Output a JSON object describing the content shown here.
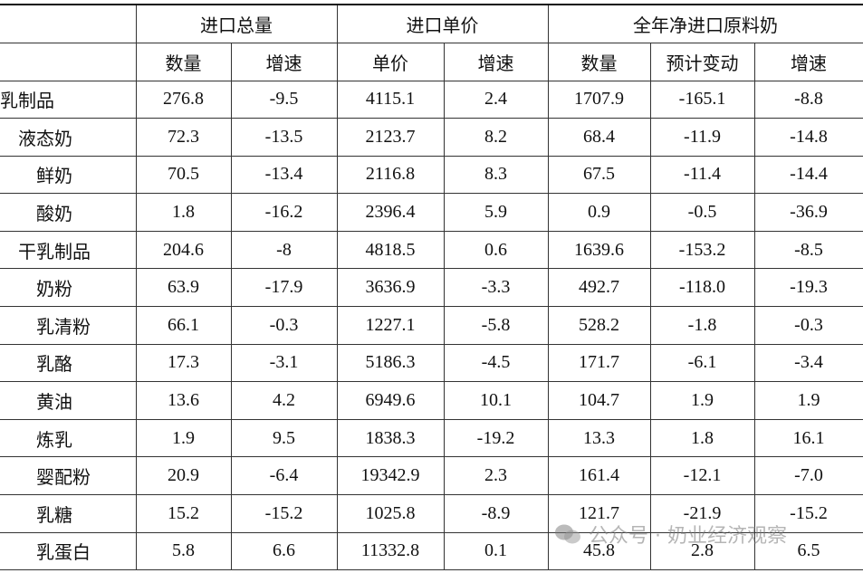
{
  "table": {
    "groups": [
      "进口总量",
      "进口单价",
      "全年净进口原料奶"
    ],
    "columns": [
      "数量",
      "增速",
      "单价",
      "增速",
      "数量",
      "预计变动",
      "增速"
    ],
    "rows": [
      [
        "乳制品",
        "276.8",
        "-9.5",
        "4115.1",
        "2.4",
        "1707.9",
        "-165.1",
        "-8.8"
      ],
      [
        "液态奶",
        "72.3",
        "-13.5",
        "2123.7",
        "8.2",
        "68.4",
        "-11.9",
        "-14.8"
      ],
      [
        "鲜奶",
        "70.5",
        "-13.4",
        "2116.8",
        "8.3",
        "67.5",
        "-11.4",
        "-14.4"
      ],
      [
        "酸奶",
        "1.8",
        "-16.2",
        "2396.4",
        "5.9",
        "0.9",
        "-0.5",
        "-36.9"
      ],
      [
        "干乳制品",
        "204.6",
        "-8",
        "4818.5",
        "0.6",
        "1639.6",
        "-153.2",
        "-8.5"
      ],
      [
        "奶粉",
        "63.9",
        "-17.9",
        "3636.9",
        "-3.3",
        "492.7",
        "-118.0",
        "-19.3"
      ],
      [
        "乳清粉",
        "66.1",
        "-0.3",
        "1227.1",
        "-5.8",
        "528.2",
        "-1.8",
        "-0.3"
      ],
      [
        "乳酪",
        "17.3",
        "-3.1",
        "5186.3",
        "-4.5",
        "171.7",
        "-6.1",
        "-3.4"
      ],
      [
        "黄油",
        "13.6",
        "4.2",
        "6949.6",
        "10.1",
        "104.7",
        "1.9",
        "1.9"
      ],
      [
        "炼乳",
        "1.9",
        "9.5",
        "1838.3",
        "-19.2",
        "13.3",
        "1.8",
        "16.1"
      ],
      [
        "婴配粉",
        "20.9",
        "-6.4",
        "19342.9",
        "2.3",
        "161.4",
        "-12.1",
        "-7.0"
      ],
      [
        "乳糖",
        "15.2",
        "-15.2",
        "1025.8",
        "-8.9",
        "121.7",
        "-21.9",
        "-15.2"
      ],
      [
        "乳蛋白",
        "5.8",
        "6.6",
        "11332.8",
        "0.1",
        "45.8",
        "2.8",
        "6.5"
      ]
    ]
  },
  "watermark": "公众号 · 奶业经济观察"
}
